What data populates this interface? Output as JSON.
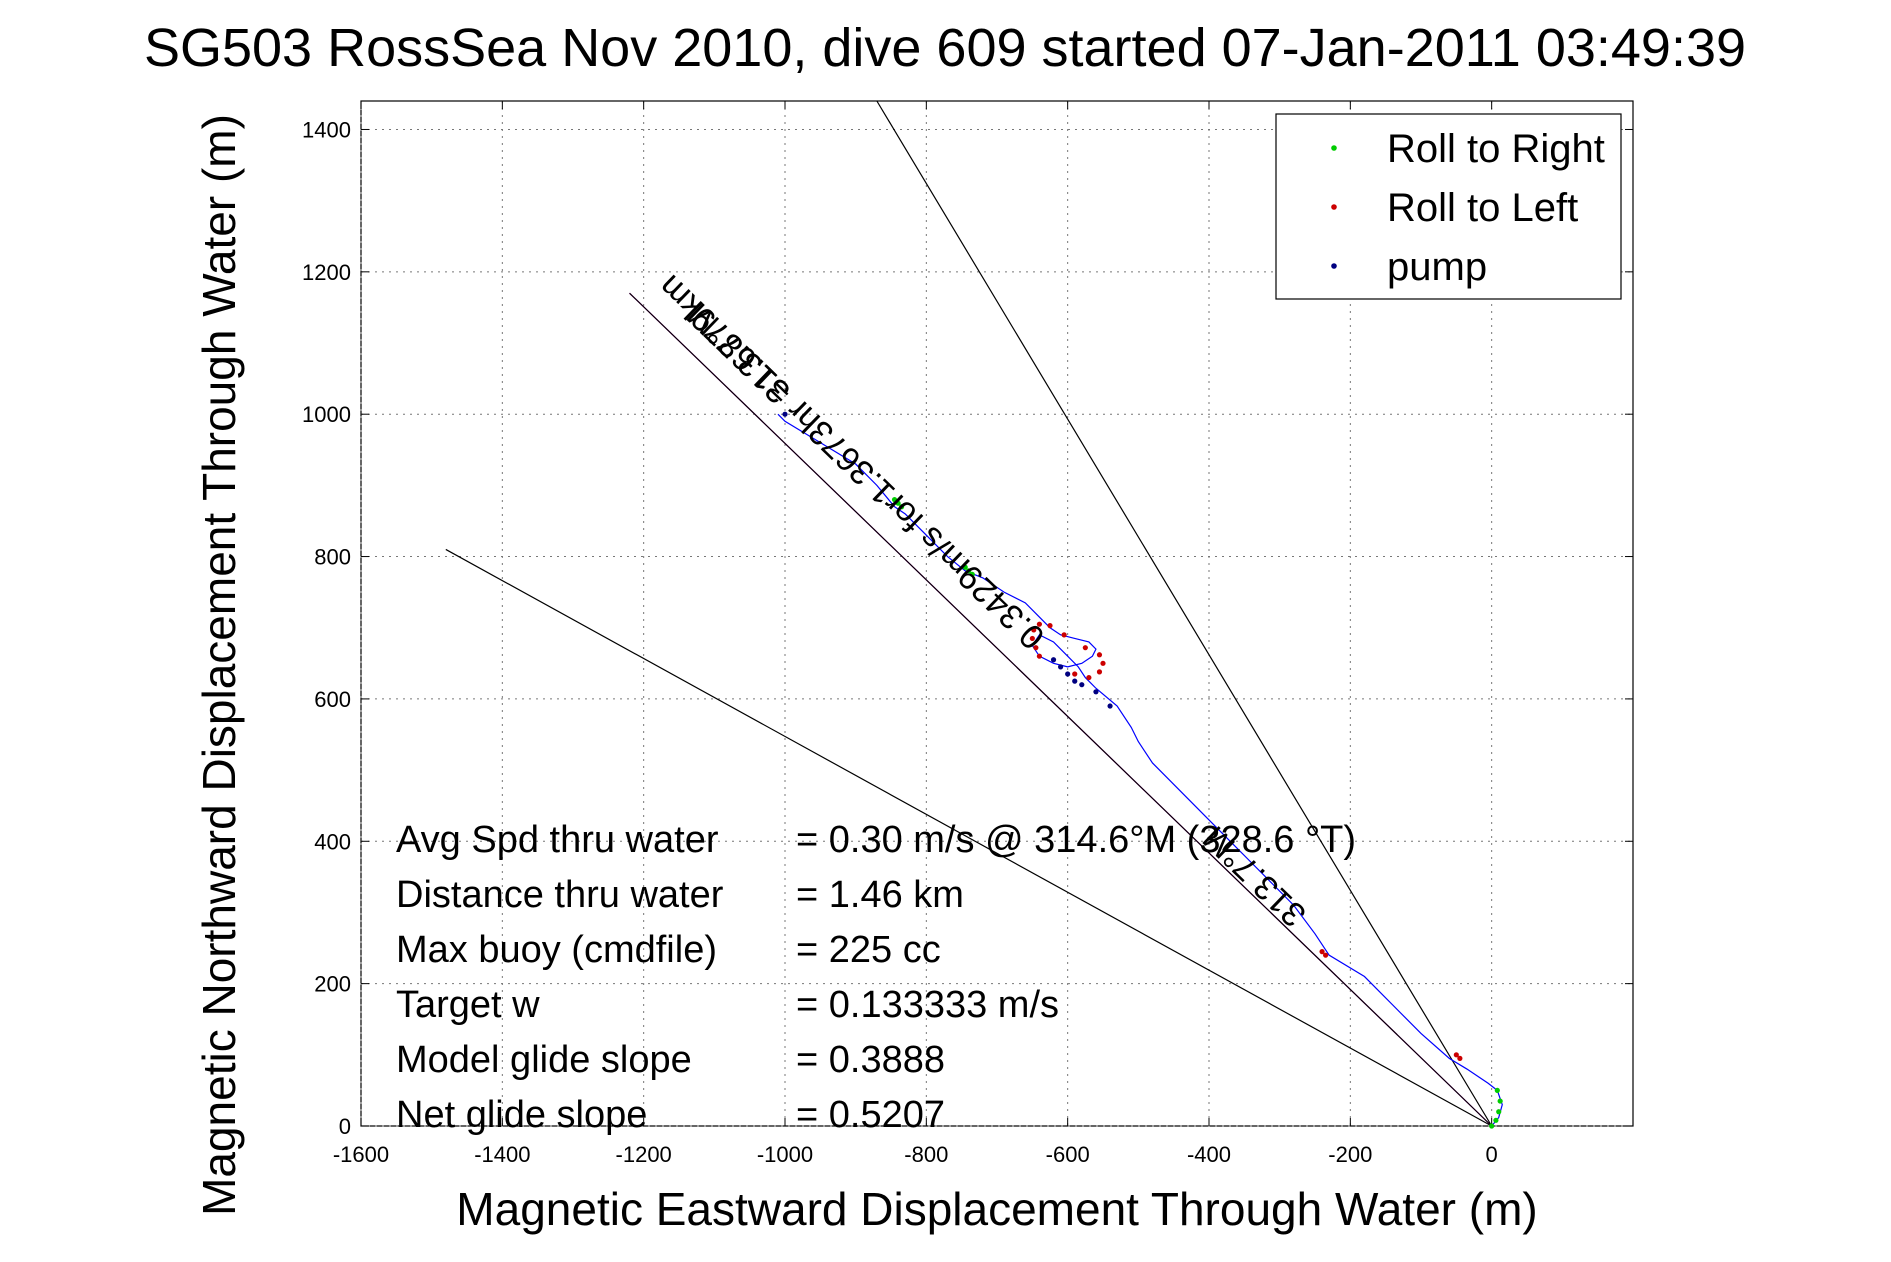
{
  "chart_data": {
    "type": "line",
    "title": "SG503 RossSea Nov 2010, dive 609 started 07-Jan-2011 03:49:39",
    "xlabel": "Magnetic Eastward Displacement Through Water (m)",
    "ylabel": "Magnetic Northward Displacement Through Water (m)",
    "xlim": [
      -1600,
      200
    ],
    "ylim": [
      0,
      1440
    ],
    "xticks": [
      -1600,
      -1400,
      -1200,
      -1000,
      -800,
      -600,
      -400,
      -200,
      0
    ],
    "yticks": [
      0,
      200,
      400,
      600,
      800,
      1000,
      1200,
      1400
    ],
    "grid": true,
    "legend": {
      "placement": "top-right",
      "entries": [
        {
          "label": "Roll to Right",
          "color": "#00cc00"
        },
        {
          "label": "Roll to Left",
          "color": "#cc0000"
        },
        {
          "label": "pump",
          "color": "#000080"
        }
      ]
    },
    "track": {
      "color": "#0000ff",
      "x": [
        0,
        10,
        15,
        8,
        -5,
        -35,
        -60,
        -100,
        -140,
        -180,
        -230,
        -250,
        -280,
        -310,
        -340,
        -370,
        -390,
        -420,
        -450,
        -480,
        -500,
        -510,
        -530,
        -560,
        -575,
        -585,
        -600,
        -620,
        -640,
        -650,
        -640,
        -620,
        -600,
        -580,
        -565,
        -560,
        -570,
        -590,
        -610,
        -625,
        -640,
        -660,
        -690,
        -720,
        -745,
        -770,
        -790,
        -810,
        -830,
        -845,
        -870,
        -900,
        -950,
        -1000,
        -1010
      ],
      "y": [
        0,
        12,
        30,
        50,
        60,
        80,
        95,
        130,
        170,
        210,
        240,
        270,
        310,
        340,
        370,
        400,
        420,
        450,
        480,
        510,
        540,
        560,
        590,
        615,
        630,
        645,
        660,
        680,
        690,
        675,
        660,
        650,
        645,
        650,
        660,
        670,
        680,
        685,
        690,
        700,
        715,
        735,
        750,
        770,
        780,
        800,
        820,
        840,
        860,
        870,
        900,
        930,
        960,
        990,
        1000
      ]
    },
    "roll_right": {
      "x": [
        0,
        6,
        10,
        12,
        8,
        -845,
        -840,
        -835,
        -745,
        -740,
        -735
      ],
      "y": [
        0,
        8,
        20,
        35,
        50,
        880,
        875,
        870,
        785,
        780,
        775
      ]
    },
    "roll_left": {
      "x": [
        -640,
        -645,
        -650,
        -648,
        -640,
        -625,
        -605,
        -575,
        -555,
        -550,
        -555,
        -570,
        -590,
        -50,
        -45,
        -240,
        -235
      ],
      "y": [
        660,
        672,
        685,
        697,
        705,
        703,
        690,
        672,
        662,
        650,
        638,
        630,
        635,
        100,
        95,
        245,
        240
      ]
    },
    "pump": {
      "x": [
        -620,
        -610,
        -600,
        -590,
        -580,
        -560,
        -540,
        -1000
      ],
      "y": [
        655,
        645,
        635,
        625,
        620,
        610,
        590,
        1000
      ]
    },
    "reference_lines": [
      {
        "color": "#000000",
        "x": [
          0,
          -1480
        ],
        "y": [
          0,
          810
        ]
      },
      {
        "color": "#000000",
        "x": [
          0,
          -870
        ],
        "y": [
          0,
          1440
        ]
      },
      {
        "color": "#ff00ff",
        "x": [
          0,
          -1220
        ],
        "y": [
          0,
          1170
        ]
      },
      {
        "color": "#000000",
        "x": [
          0,
          -1220
        ],
        "y": [
          0,
          1170
        ]
      }
    ],
    "annotations": [
      {
        "text": "313.7°M",
        "x": -990,
        "y": 1035
      },
      {
        "text": "0.3429m/s for1.3673hr =1.6879km",
        "x": -630,
        "y": 690
      },
      {
        "text": "313.7°M",
        "x": -260,
        "y": 300
      }
    ],
    "stats": [
      {
        "label": "Avg Spd thru water",
        "value": "=  0.30 m/s @ 314.6°M (328.6 °T)"
      },
      {
        "label": "Distance thru water",
        "value": "=  1.46 km"
      },
      {
        "label": "Max buoy (cmdfile)",
        "value": "= 225 cc"
      },
      {
        "label": "Target w",
        "value": "= 0.133333 m/s"
      },
      {
        "label": "Model glide slope",
        "value": "= 0.3888"
      },
      {
        "label": "Net glide slope",
        "value": "= 0.5207"
      }
    ]
  }
}
